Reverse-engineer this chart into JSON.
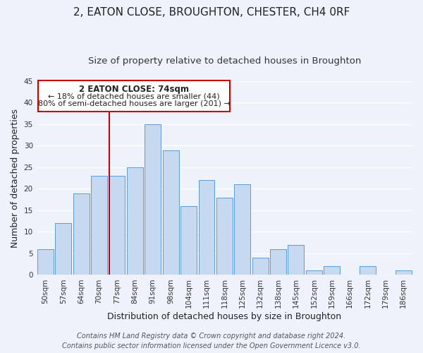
{
  "title": "2, EATON CLOSE, BROUGHTON, CHESTER, CH4 0RF",
  "subtitle": "Size of property relative to detached houses in Broughton",
  "xlabel": "Distribution of detached houses by size in Broughton",
  "ylabel": "Number of detached properties",
  "bar_labels": [
    "50sqm",
    "57sqm",
    "64sqm",
    "70sqm",
    "77sqm",
    "84sqm",
    "91sqm",
    "98sqm",
    "104sqm",
    "111sqm",
    "118sqm",
    "125sqm",
    "132sqm",
    "138sqm",
    "145sqm",
    "152sqm",
    "159sqm",
    "166sqm",
    "172sqm",
    "179sqm",
    "186sqm"
  ],
  "bar_values": [
    6,
    12,
    19,
    23,
    23,
    25,
    35,
    29,
    16,
    22,
    18,
    21,
    4,
    6,
    7,
    1,
    2,
    0,
    2,
    0,
    1
  ],
  "bar_color": "#c6d9f0",
  "bar_edge_color": "#5b9bd5",
  "ylim": [
    0,
    45
  ],
  "yticks": [
    0,
    5,
    10,
    15,
    20,
    25,
    30,
    35,
    40,
    45
  ],
  "vline_color": "#cc0000",
  "annotation_title": "2 EATON CLOSE: 74sqm",
  "annotation_line1": "← 18% of detached houses are smaller (44)",
  "annotation_line2": "80% of semi-detached houses are larger (201) →",
  "footer_line1": "Contains HM Land Registry data © Crown copyright and database right 2024.",
  "footer_line2": "Contains public sector information licensed under the Open Government Licence v3.0.",
  "background_color": "#eef2fb",
  "grid_color": "#ffffff",
  "title_fontsize": 11,
  "subtitle_fontsize": 9.5,
  "axis_label_fontsize": 9,
  "tick_fontsize": 7.5,
  "footer_fontsize": 7,
  "annotation_fontsize": 8.5,
  "vline_index": 3.57
}
